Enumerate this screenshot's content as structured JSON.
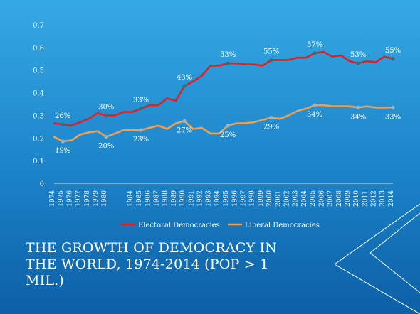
{
  "slide": {
    "title": "The Growth of Democracy in the World, 1974-2014 (Pop > 1 mil.)"
  },
  "chart_data": {
    "type": "line",
    "x_labels": [
      "1974",
      "1975",
      "1976",
      "1977",
      "1978",
      "1979",
      "1980",
      "",
      "",
      "1984",
      "1985",
      "1986",
      "1987",
      "1988",
      "1989",
      "1990",
      "1991",
      "1992",
      "1993",
      "1994",
      "1995",
      "1996",
      "1997",
      "1998",
      "1999",
      "2000",
      "2001",
      "2002",
      "2003",
      "2004",
      "2005",
      "2006",
      "2007",
      "2008",
      "2009",
      "2010",
      "2011",
      "2012",
      "2013",
      "2014"
    ],
    "x_ticks": [
      "1974",
      "1975",
      "1976",
      "1977",
      "1978",
      "1979",
      "1980",
      "1984",
      "1985",
      "1986",
      "1987",
      "1988",
      "1989",
      "1990",
      "1991",
      "1992",
      "1993",
      "1994",
      "1995",
      "1996",
      "1997",
      "1998",
      "1999",
      "2000",
      "2001",
      "2002",
      "2003",
      "2004",
      "2005",
      "2006",
      "2007",
      "2008",
      "2009",
      "2010",
      "2011",
      "2012",
      "2013",
      "2014"
    ],
    "y_ticks": [
      "0",
      "0.1",
      "0.2",
      "0.3",
      "0.4",
      "0.5",
      "0.6",
      "0.7"
    ],
    "ylim": [
      0,
      0.7
    ],
    "legend_position": "bottom",
    "series": [
      {
        "name": "Electoral Democracies",
        "color": "#e02020",
        "values": [
          0.265,
          0.26,
          0.255,
          0.27,
          0.285,
          0.31,
          0.3,
          0.3,
          0.315,
          0.315,
          0.33,
          0.345,
          0.345,
          0.375,
          0.365,
          0.43,
          0.45,
          0.475,
          0.52,
          0.52,
          0.53,
          0.53,
          0.525,
          0.525,
          0.52,
          0.545,
          0.545,
          0.545,
          0.555,
          0.555,
          0.575,
          0.58,
          0.56,
          0.565,
          0.54,
          0.53,
          0.54,
          0.535,
          0.56,
          0.55
        ]
      },
      {
        "name": "Liberal Democracies",
        "color": "#f0a050",
        "values": [
          0.205,
          0.185,
          0.19,
          0.215,
          0.225,
          0.23,
          0.205,
          0.22,
          0.235,
          0.235,
          0.235,
          0.245,
          0.255,
          0.24,
          0.265,
          0.275,
          0.24,
          0.245,
          0.22,
          0.22,
          0.255,
          0.265,
          0.265,
          0.27,
          0.28,
          0.29,
          0.285,
          0.3,
          0.32,
          0.33,
          0.345,
          0.345,
          0.34,
          0.34,
          0.34,
          0.335,
          0.34,
          0.335,
          0.335,
          0.335
        ]
      }
    ],
    "data_labels": [
      {
        "series": 0,
        "index": 1,
        "text": "26%"
      },
      {
        "series": 0,
        "index": 6,
        "text": "30%"
      },
      {
        "series": 0,
        "index": 10,
        "text": "33%"
      },
      {
        "series": 0,
        "index": 15,
        "text": "43%"
      },
      {
        "series": 0,
        "index": 20,
        "text": "53%"
      },
      {
        "series": 0,
        "index": 25,
        "text": "55%"
      },
      {
        "series": 0,
        "index": 30,
        "text": "57%"
      },
      {
        "series": 0,
        "index": 35,
        "text": "53%"
      },
      {
        "series": 0,
        "index": 39,
        "text": "55%"
      },
      {
        "series": 1,
        "index": 1,
        "text": "19%"
      },
      {
        "series": 1,
        "index": 6,
        "text": "20%"
      },
      {
        "series": 1,
        "index": 10,
        "text": "23%"
      },
      {
        "series": 1,
        "index": 15,
        "text": "27%"
      },
      {
        "series": 1,
        "index": 20,
        "text": "25%"
      },
      {
        "series": 1,
        "index": 25,
        "text": "29%"
      },
      {
        "series": 1,
        "index": 30,
        "text": "34%"
      },
      {
        "series": 1,
        "index": 35,
        "text": "34%"
      },
      {
        "series": 1,
        "index": 39,
        "text": "33%"
      }
    ]
  }
}
